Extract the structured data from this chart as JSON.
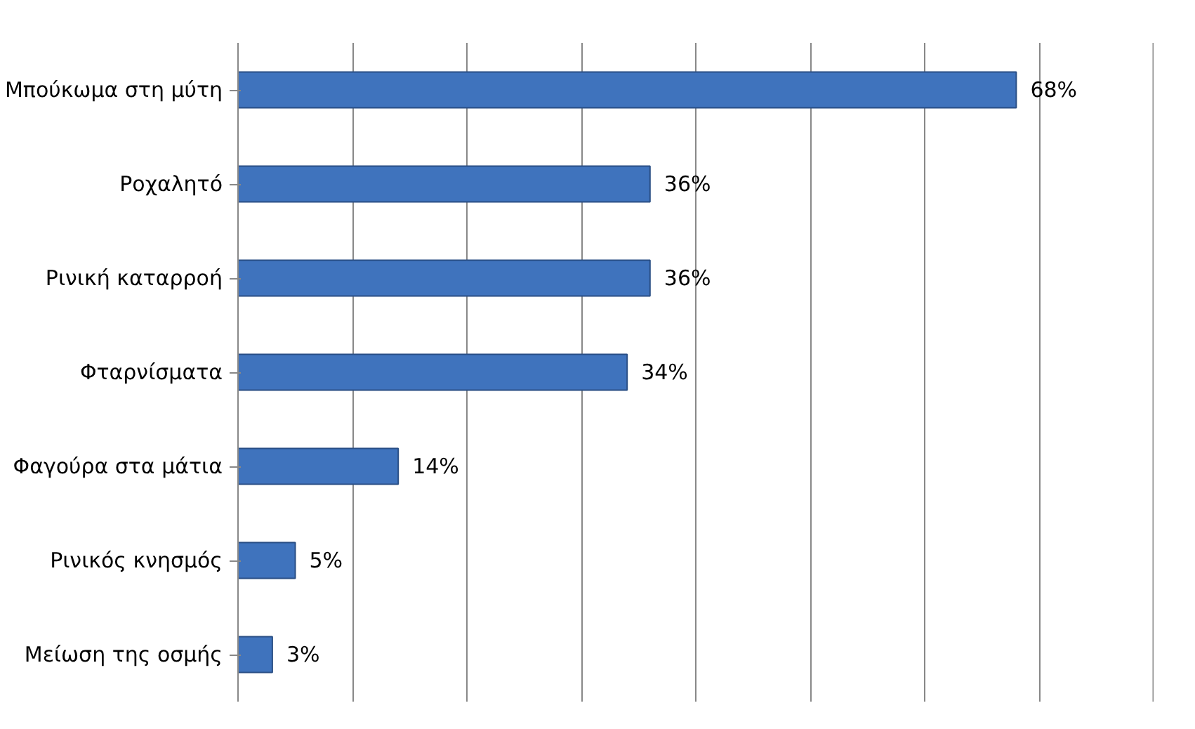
{
  "chart_data": {
    "type": "bar",
    "orientation": "horizontal",
    "categories": [
      "Μπούκωμα στη μύτη",
      "Ροχαλητό",
      "Ρινική καταρροή",
      "Φταρνίσματα",
      "Φαγούρα στα μάτια",
      "Ρινικός κνησμός",
      "Μείωση της οσμής"
    ],
    "values": [
      68,
      36,
      36,
      34,
      14,
      5,
      3
    ],
    "value_labels": [
      "68%",
      "36%",
      "36%",
      "34%",
      "14%",
      "5%",
      "3%"
    ],
    "color": "#3f73bd",
    "xlim": [
      0,
      80
    ],
    "xticks": [
      {
        "value": 0,
        "label": null
      },
      {
        "value": 10,
        "label": null
      },
      {
        "value": 20,
        "label": null
      },
      {
        "value": 30,
        "label": null
      },
      {
        "value": 40,
        "label": null
      },
      {
        "value": 50,
        "label": null
      },
      {
        "value": 60,
        "label": null
      },
      {
        "value": 70,
        "label": null
      },
      {
        "value": 80,
        "label": null
      }
    ],
    "grid": "x",
    "tick_labels": "y"
  }
}
